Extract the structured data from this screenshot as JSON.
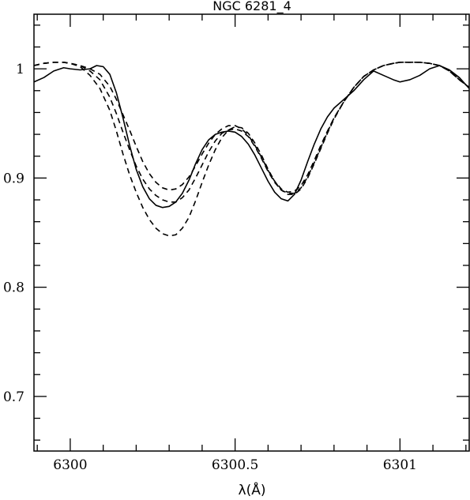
{
  "chart_data": {
    "type": "line",
    "title": "NGC 6281_4",
    "xlabel": "λ(Å)",
    "ylabel": "",
    "xlim": [
      6299.89,
      6301.21
    ],
    "ylim": [
      0.65,
      1.05
    ],
    "grid": false,
    "x_ticks": [
      6300,
      6300.5,
      6301
    ],
    "x_tick_labels": [
      "6300",
      "6300.5",
      "6301"
    ],
    "y_ticks": [
      0.7,
      0.8,
      0.9,
      1.0
    ],
    "y_tick_labels": [
      "0.7",
      "0.8",
      "0.9",
      "1"
    ],
    "series": [
      {
        "style": "solid",
        "x": [
          6299.89,
          6299.92,
          6299.95,
          6299.98,
          6300.0,
          6300.03,
          6300.06,
          6300.08,
          6300.1,
          6300.12,
          6300.14,
          6300.16,
          6300.18,
          6300.2,
          6300.22,
          6300.24,
          6300.26,
          6300.28,
          6300.3,
          6300.32,
          6300.34,
          6300.36,
          6300.38,
          6300.4,
          6300.42,
          6300.44,
          6300.46,
          6300.48,
          6300.5,
          6300.52,
          6300.54,
          6300.56,
          6300.58,
          6300.6,
          6300.62,
          6300.64,
          6300.66,
          6300.68,
          6300.7,
          6300.72,
          6300.74,
          6300.76,
          6300.78,
          6300.8,
          6300.83,
          6300.86,
          6300.89,
          6300.92,
          6300.95,
          6300.98,
          6301.0,
          6301.03,
          6301.06,
          6301.09,
          6301.12,
          6301.15,
          6301.18,
          6301.21
        ],
        "y": [
          0.988,
          0.992,
          0.998,
          1.001,
          1.0,
          0.999,
          1.0,
          1.003,
          1.002,
          0.995,
          0.978,
          0.955,
          0.93,
          0.908,
          0.892,
          0.881,
          0.875,
          0.873,
          0.874,
          0.878,
          0.886,
          0.898,
          0.913,
          0.926,
          0.935,
          0.94,
          0.942,
          0.943,
          0.942,
          0.938,
          0.931,
          0.921,
          0.909,
          0.897,
          0.887,
          0.881,
          0.879,
          0.885,
          0.898,
          0.915,
          0.931,
          0.945,
          0.956,
          0.964,
          0.972,
          0.98,
          0.99,
          0.998,
          0.994,
          0.99,
          0.988,
          0.99,
          0.994,
          1.0,
          1.003,
          0.999,
          0.992,
          0.982
        ]
      },
      {
        "style": "dashed",
        "x": [
          6299.89,
          6299.92,
          6299.95,
          6299.98,
          6300.0,
          6300.03,
          6300.06,
          6300.09,
          6300.12,
          6300.14,
          6300.16,
          6300.18,
          6300.2,
          6300.22,
          6300.24,
          6300.26,
          6300.28,
          6300.3,
          6300.32,
          6300.34,
          6300.36,
          6300.38,
          6300.4,
          6300.42,
          6300.44,
          6300.46,
          6300.48,
          6300.5,
          6300.52,
          6300.54,
          6300.56,
          6300.58,
          6300.6,
          6300.62,
          6300.64,
          6300.66,
          6300.68,
          6300.7,
          6300.72,
          6300.74,
          6300.76,
          6300.78,
          6300.8,
          6300.83,
          6300.86,
          6300.89,
          6300.92,
          6300.95,
          6300.98,
          6301.0,
          6301.03,
          6301.06,
          6301.09,
          6301.12,
          6301.15,
          6301.18,
          6301.21
        ],
        "y": [
          1.003,
          1.005,
          1.006,
          1.006,
          1.005,
          1.002,
          0.994,
          0.982,
          0.962,
          0.943,
          0.922,
          0.903,
          0.887,
          0.873,
          0.862,
          0.854,
          0.849,
          0.847,
          0.848,
          0.854,
          0.864,
          0.879,
          0.896,
          0.912,
          0.926,
          0.937,
          0.944,
          0.947,
          0.946,
          0.941,
          0.932,
          0.921,
          0.908,
          0.897,
          0.889,
          0.885,
          0.885,
          0.89,
          0.9,
          0.913,
          0.927,
          0.941,
          0.954,
          0.97,
          0.983,
          0.993,
          0.999,
          1.003,
          1.005,
          1.006,
          1.006,
          1.006,
          1.005,
          1.003,
          0.998,
          0.99,
          0.983
        ]
      },
      {
        "style": "dashed",
        "x": [
          6299.89,
          6299.92,
          6299.95,
          6299.98,
          6300.0,
          6300.03,
          6300.06,
          6300.09,
          6300.12,
          6300.14,
          6300.16,
          6300.18,
          6300.2,
          6300.22,
          6300.24,
          6300.26,
          6300.28,
          6300.3,
          6300.32,
          6300.34,
          6300.36,
          6300.38,
          6300.4,
          6300.42,
          6300.44,
          6300.46,
          6300.48,
          6300.5,
          6300.52,
          6300.54,
          6300.56,
          6300.58,
          6300.6,
          6300.62,
          6300.64,
          6300.66,
          6300.68,
          6300.7,
          6300.72,
          6300.74,
          6300.76,
          6300.78,
          6300.8,
          6300.83,
          6300.86,
          6300.89,
          6300.92,
          6300.95,
          6300.98,
          6301.0,
          6301.03,
          6301.06,
          6301.09,
          6301.12,
          6301.15,
          6301.18,
          6301.21
        ],
        "y": [
          1.003,
          1.005,
          1.006,
          1.006,
          1.005,
          1.003,
          0.998,
          0.99,
          0.974,
          0.959,
          0.942,
          0.926,
          0.911,
          0.899,
          0.89,
          0.884,
          0.88,
          0.878,
          0.878,
          0.882,
          0.889,
          0.9,
          0.912,
          0.924,
          0.934,
          0.941,
          0.944,
          0.945,
          0.943,
          0.938,
          0.929,
          0.918,
          0.906,
          0.896,
          0.889,
          0.886,
          0.886,
          0.891,
          0.901,
          0.914,
          0.928,
          0.942,
          0.955,
          0.97,
          0.983,
          0.993,
          0.999,
          1.003,
          1.005,
          1.006,
          1.006,
          1.006,
          1.005,
          1.003,
          0.998,
          0.99,
          0.983
        ]
      },
      {
        "style": "dashed",
        "x": [
          6299.89,
          6299.92,
          6299.95,
          6299.98,
          6300.0,
          6300.03,
          6300.06,
          6300.09,
          6300.12,
          6300.14,
          6300.16,
          6300.18,
          6300.2,
          6300.22,
          6300.24,
          6300.26,
          6300.28,
          6300.3,
          6300.32,
          6300.34,
          6300.36,
          6300.38,
          6300.4,
          6300.42,
          6300.44,
          6300.46,
          6300.48,
          6300.5,
          6300.52,
          6300.54,
          6300.56,
          6300.58,
          6300.6,
          6300.62,
          6300.64,
          6300.66,
          6300.68,
          6300.7,
          6300.72,
          6300.74,
          6300.76,
          6300.78,
          6300.8,
          6300.83,
          6300.86,
          6300.89,
          6300.92,
          6300.95,
          6300.98,
          6301.0,
          6301.03,
          6301.06,
          6301.09,
          6301.12,
          6301.15,
          6301.18,
          6301.21
        ],
        "y": [
          1.003,
          1.005,
          1.006,
          1.006,
          1.005,
          1.003,
          1.0,
          0.995,
          0.984,
          0.972,
          0.958,
          0.944,
          0.929,
          0.915,
          0.904,
          0.896,
          0.891,
          0.889,
          0.89,
          0.894,
          0.901,
          0.911,
          0.922,
          0.932,
          0.94,
          0.945,
          0.948,
          0.948,
          0.945,
          0.939,
          0.93,
          0.919,
          0.907,
          0.897,
          0.89,
          0.887,
          0.888,
          0.893,
          0.903,
          0.916,
          0.93,
          0.943,
          0.955,
          0.97,
          0.983,
          0.993,
          0.999,
          1.003,
          1.005,
          1.006,
          1.006,
          1.006,
          1.005,
          1.003,
          0.998,
          0.99,
          0.983
        ]
      }
    ]
  }
}
